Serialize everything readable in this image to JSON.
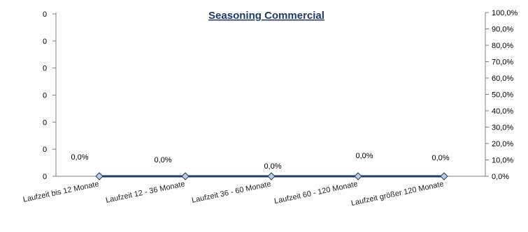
{
  "chart_data": {
    "type": "line",
    "title": "Seasoning Commercial",
    "categories": [
      "Laufzeit bis 12 Monate",
      "Laufzeit 12 - 36 Monate",
      "Laufzeit 36 - 60 Monate",
      "Laufzeit 60 - 120 Monate",
      "Laufzeit größer 120 Monate"
    ],
    "series": [
      {
        "values": [
          0,
          0,
          0,
          0,
          0
        ],
        "axis": "secondary"
      }
    ],
    "data_labels": [
      "0,0%",
      "0,0%",
      "0,0%",
      "0,0%",
      "0,0%"
    ],
    "y_left": {
      "ticks": [
        "0",
        "0",
        "0",
        "0",
        "0",
        "0",
        "0"
      ]
    },
    "y_right": {
      "ticks": [
        "0,0%",
        "10,0%",
        "20,0%",
        "30,0%",
        "40,0%",
        "50,0%",
        "60,0%",
        "70,0%",
        "80,0%",
        "90,0%",
        "100,0%"
      ],
      "ylim": [
        0,
        1
      ]
    },
    "grid": false,
    "legend": "none",
    "colors": {
      "line": "#1f3a68",
      "marker_fill": "#b8cce4",
      "marker_stroke": "#1f3a68",
      "axis": "#7f7f7f"
    }
  }
}
